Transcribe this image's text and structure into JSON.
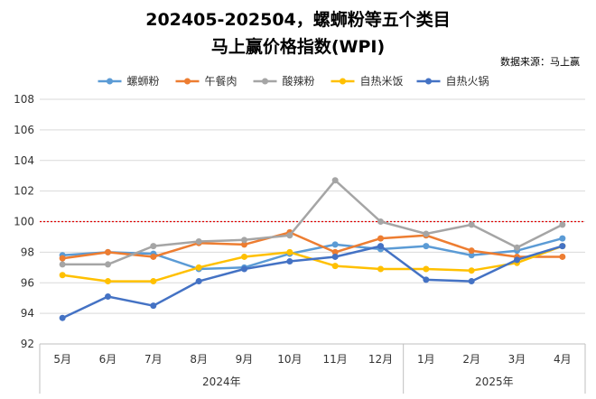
{
  "chart_data": {
    "type": "line",
    "title_line1": "202405-202504，螺蛳粉等五个类目",
    "title_line2": "马上赢价格指数(WPI)",
    "source": "数据来源：马上赢",
    "categories": [
      "5月",
      "6月",
      "7月",
      "8月",
      "9月",
      "10月",
      "11月",
      "12月",
      "1月",
      "2月",
      "3月",
      "4月"
    ],
    "groups": [
      {
        "label": "2024年",
        "count": 8
      },
      {
        "label": "2025年",
        "count": 4
      }
    ],
    "ylim": [
      92,
      108
    ],
    "yticks": [
      92,
      94,
      96,
      98,
      100,
      102,
      104,
      106,
      108
    ],
    "reference_line": {
      "value": 100,
      "color": "#e00000",
      "style": "dotted"
    },
    "grid": true,
    "legend_position": "top",
    "series": [
      {
        "name": "螺蛳粉",
        "color": "#5b9bd5",
        "values": [
          97.8,
          98.0,
          97.9,
          96.9,
          97.0,
          97.9,
          98.5,
          98.2,
          98.4,
          97.8,
          98.1,
          98.9
        ]
      },
      {
        "name": "午餐肉",
        "color": "#ed7d31",
        "values": [
          97.6,
          98.0,
          97.7,
          98.6,
          98.5,
          99.3,
          98.0,
          98.9,
          99.1,
          98.1,
          97.7,
          97.7
        ]
      },
      {
        "name": "酸辣粉",
        "color": "#a5a5a5",
        "values": [
          97.2,
          97.2,
          98.4,
          98.7,
          98.8,
          99.1,
          102.7,
          100.0,
          99.2,
          99.8,
          98.3,
          99.8
        ]
      },
      {
        "name": "自热米饭",
        "color": "#ffc000",
        "values": [
          96.5,
          96.1,
          96.1,
          97.0,
          97.7,
          98.0,
          97.1,
          96.9,
          96.9,
          96.8,
          97.3,
          98.4
        ]
      },
      {
        "name": "自热火锅",
        "color": "#4472c4",
        "values": [
          93.7,
          95.1,
          94.5,
          96.1,
          96.9,
          97.4,
          97.7,
          98.4,
          96.2,
          96.1,
          97.5,
          98.4
        ]
      }
    ]
  }
}
